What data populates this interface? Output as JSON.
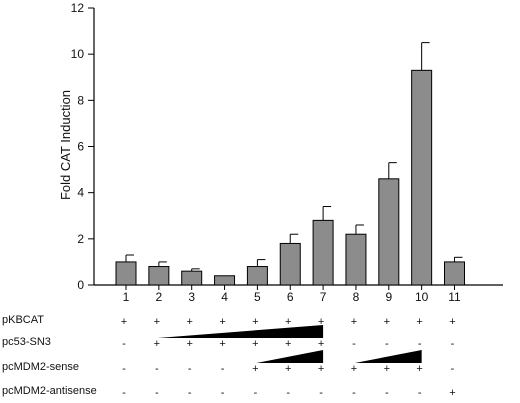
{
  "chart_data": {
    "type": "bar",
    "ylabel": "Fold CAT Induction",
    "xlabel": "",
    "ylim": [
      0,
      12
    ],
    "yticks": [
      0,
      2,
      4,
      6,
      8,
      10,
      12
    ],
    "grid": false,
    "bar_color": "#8c8c8c",
    "categories": [
      "1",
      "2",
      "3",
      "4",
      "5",
      "6",
      "7",
      "8",
      "9",
      "10",
      "11"
    ],
    "values": [
      1.0,
      0.8,
      0.6,
      0.4,
      0.8,
      1.8,
      2.8,
      2.2,
      4.6,
      9.3,
      1.0
    ],
    "errors": [
      0.3,
      0.2,
      0.1,
      0.0,
      0.3,
      0.4,
      0.6,
      0.4,
      0.7,
      1.2,
      0.2
    ]
  },
  "conditions": [
    {
      "label": "pKBCAT",
      "signs": [
        "+",
        "+",
        "+",
        "+",
        "+",
        "+",
        "+",
        "+",
        "+",
        "+",
        "+"
      ]
    },
    {
      "label": "pc53-SN3",
      "signs": [
        "-",
        "+",
        "+",
        "+",
        "+",
        "+",
        "+",
        "-",
        "-",
        "-",
        "-"
      ],
      "ramps": [
        {
          "from": 2,
          "to": 7
        }
      ]
    },
    {
      "label": "pcMDM2-sense",
      "signs": [
        "-",
        "-",
        "-",
        "-",
        "+",
        "+",
        "+",
        "+",
        "+",
        "+",
        "-"
      ],
      "ramps": [
        {
          "from": 5,
          "to": 7
        },
        {
          "from": 8,
          "to": 10
        }
      ]
    },
    {
      "label": "pcMDM2-antisense",
      "signs": [
        "-",
        "-",
        "-",
        "-",
        "-",
        "-",
        "-",
        "-",
        "-",
        "-",
        "+"
      ]
    }
  ]
}
